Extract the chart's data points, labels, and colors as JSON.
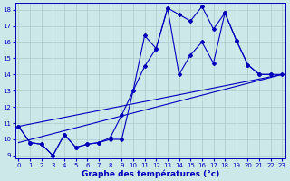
{
  "xlabel": "Graphe des températures (°c)",
  "background_color": "#cce8e8",
  "grid_color": "#aacccc",
  "line_color": "#0000bb",
  "xlim": [
    -0.3,
    23.3
  ],
  "ylim": [
    8.8,
    18.4
  ],
  "yticks": [
    9,
    10,
    11,
    12,
    13,
    14,
    15,
    16,
    17,
    18
  ],
  "xticks": [
    0,
    1,
    2,
    3,
    4,
    5,
    6,
    7,
    8,
    9,
    10,
    11,
    12,
    13,
    14,
    15,
    16,
    17,
    18,
    19,
    20,
    21,
    22,
    23
  ],
  "line1_x": [
    0,
    1,
    2,
    3,
    4,
    5,
    6,
    7,
    8,
    9,
    10,
    11,
    12,
    13,
    14,
    15,
    16,
    17,
    18,
    19,
    20,
    21,
    22
  ],
  "line1_y": [
    10.8,
    9.8,
    9.7,
    9.0,
    10.3,
    9.5,
    9.7,
    9.8,
    10.0,
    10.0,
    13.0,
    16.4,
    15.6,
    18.1,
    17.7,
    17.3,
    18.2,
    16.8,
    17.8,
    16.1,
    14.6,
    14.0,
    14.0
  ],
  "line2_x": [
    0,
    1,
    2,
    3,
    4,
    5,
    6,
    7,
    8,
    9,
    10,
    11,
    12,
    13,
    14,
    15,
    16,
    17,
    18,
    19,
    20,
    21,
    22,
    23
  ],
  "line2_y": [
    10.8,
    9.8,
    9.7,
    9.0,
    10.3,
    9.5,
    9.7,
    9.8,
    10.1,
    11.5,
    13.0,
    14.5,
    15.6,
    18.1,
    14.0,
    15.2,
    16.0,
    14.7,
    17.8,
    16.1,
    14.6,
    14.0,
    14.0,
    14.0
  ],
  "line3_x": [
    0,
    23
  ],
  "line3_y": [
    9.8,
    14.0
  ],
  "line4_x": [
    0,
    23
  ],
  "line4_y": [
    10.8,
    14.0
  ],
  "tick_fontsize": 5.0,
  "xlabel_fontsize": 6.5
}
